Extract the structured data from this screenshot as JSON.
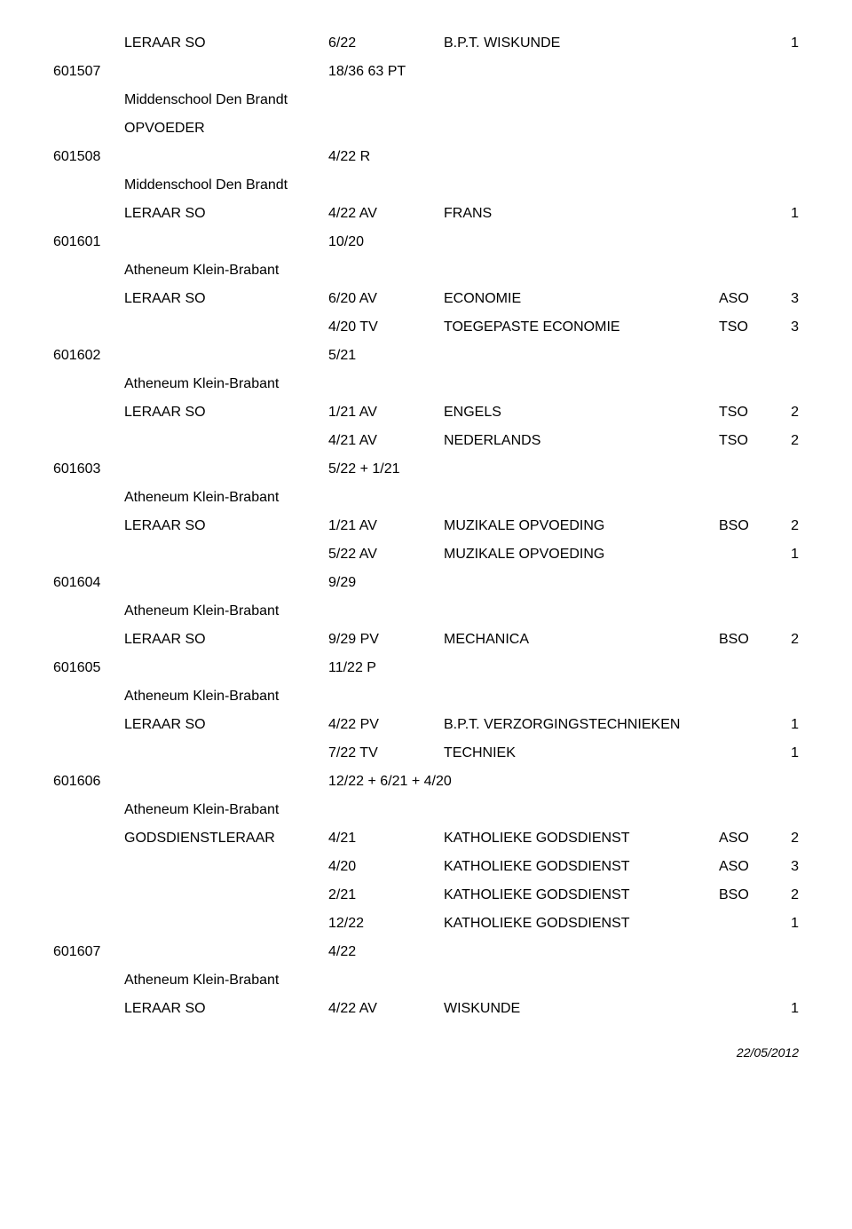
{
  "footer_date": "22/05/2012",
  "rows": [
    {
      "indent": 1,
      "role": "LERAAR SO",
      "hours": "6/22",
      "subject": "B.P.T. WISKUNDE",
      "track": "",
      "grade": "1"
    },
    {
      "indent": 0,
      "id": "601507",
      "hours": "18/36 63 PT"
    },
    {
      "indent": 1,
      "role": "Middenschool Den Brandt"
    },
    {
      "indent": 1,
      "role": "OPVOEDER"
    },
    {
      "indent": 0,
      "id": "601508",
      "hours": "4/22 R"
    },
    {
      "indent": 1,
      "role": "Middenschool Den Brandt"
    },
    {
      "indent": 1,
      "role": "LERAAR SO",
      "hours": "4/22 AV",
      "subject": "FRANS",
      "track": "",
      "grade": "1"
    },
    {
      "indent": 0,
      "id": "601601",
      "hours": "10/20"
    },
    {
      "indent": 1,
      "role": "Atheneum Klein-Brabant"
    },
    {
      "indent": 1,
      "role": "LERAAR SO",
      "hours": "6/20 AV",
      "subject": "ECONOMIE",
      "track": "ASO",
      "grade": "3"
    },
    {
      "indent": 1,
      "role": "",
      "hours": "4/20 TV",
      "subject": "TOEGEPASTE ECONOMIE",
      "track": "TSO",
      "grade": "3"
    },
    {
      "indent": 0,
      "id": "601602",
      "hours": "5/21"
    },
    {
      "indent": 1,
      "role": "Atheneum Klein-Brabant"
    },
    {
      "indent": 1,
      "role": "LERAAR SO",
      "hours": "1/21 AV",
      "subject": "ENGELS",
      "track": "TSO",
      "grade": "2"
    },
    {
      "indent": 1,
      "role": "",
      "hours": "4/21 AV",
      "subject": "NEDERLANDS",
      "track": "TSO",
      "grade": "2"
    },
    {
      "indent": 0,
      "id": "601603",
      "hours": "5/22 + 1/21"
    },
    {
      "indent": 1,
      "role": "Atheneum Klein-Brabant"
    },
    {
      "indent": 1,
      "role": "LERAAR SO",
      "hours": "1/21 AV",
      "subject": "MUZIKALE OPVOEDING",
      "track": "BSO",
      "grade": "2"
    },
    {
      "indent": 1,
      "role": "",
      "hours": "5/22 AV",
      "subject": "MUZIKALE OPVOEDING",
      "track": "",
      "grade": "1"
    },
    {
      "indent": 0,
      "id": "601604",
      "hours": "9/29"
    },
    {
      "indent": 1,
      "role": "Atheneum Klein-Brabant"
    },
    {
      "indent": 1,
      "role": "LERAAR SO",
      "hours": "9/29 PV",
      "subject": "MECHANICA",
      "track": "BSO",
      "grade": "2"
    },
    {
      "indent": 0,
      "id": "601605",
      "hours": "11/22 P"
    },
    {
      "indent": 1,
      "role": "Atheneum Klein-Brabant"
    },
    {
      "indent": 1,
      "role": "LERAAR SO",
      "hours": "4/22 PV",
      "subject": "B.P.T. VERZORGINGSTECHNIEKEN",
      "track": "",
      "grade": "1"
    },
    {
      "indent": 1,
      "role": "",
      "hours": "7/22 TV",
      "subject": "TECHNIEK",
      "track": "",
      "grade": "1"
    },
    {
      "indent": 0,
      "id": "601606",
      "hours": "12/22 + 6/21 + 4/20"
    },
    {
      "indent": 1,
      "role": "Atheneum Klein-Brabant"
    },
    {
      "indent": 1,
      "role": "GODSDIENSTLERAAR",
      "hours": "4/21",
      "subject": "KATHOLIEKE GODSDIENST",
      "track": "ASO",
      "grade": "2"
    },
    {
      "indent": 1,
      "role": "",
      "hours": "4/20",
      "subject": "KATHOLIEKE GODSDIENST",
      "track": "ASO",
      "grade": "3"
    },
    {
      "indent": 1,
      "role": "",
      "hours": "2/21",
      "subject": "KATHOLIEKE GODSDIENST",
      "track": "BSO",
      "grade": "2"
    },
    {
      "indent": 1,
      "role": "",
      "hours": "12/22",
      "subject": "KATHOLIEKE GODSDIENST",
      "track": "",
      "grade": "1"
    },
    {
      "indent": 0,
      "id": "601607",
      "hours": "4/22"
    },
    {
      "indent": 1,
      "role": "Atheneum Klein-Brabant"
    },
    {
      "indent": 1,
      "role": "LERAAR SO",
      "hours": "4/22 AV",
      "subject": "WISKUNDE",
      "track": "",
      "grade": "1"
    }
  ]
}
